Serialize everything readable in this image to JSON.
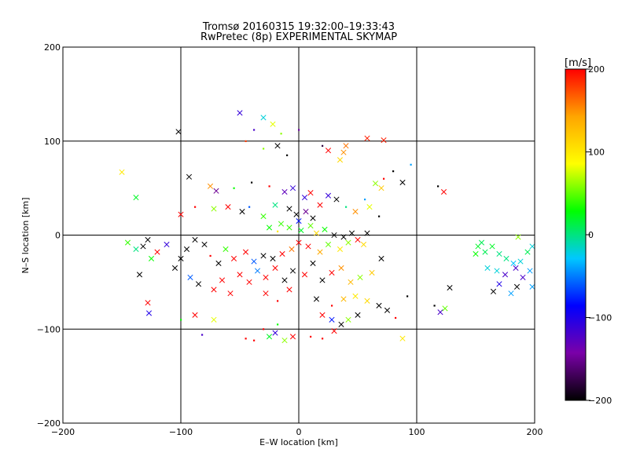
{
  "chart_data": {
    "type": "scatter",
    "title": "Tromsø 20160315 19:32:00–19:33:43",
    "subtitle": "RwPretec (8p) EXPERIMENTAL SKYMAP",
    "xlabel": "E–W location [km]",
    "ylabel": "N–S location [km]",
    "xlim": [
      -200,
      200
    ],
    "ylim": [
      -200,
      200
    ],
    "xticks": [
      -200,
      -100,
      0,
      100,
      200
    ],
    "yticks": [
      -200,
      -100,
      0,
      100,
      200
    ],
    "grid": true,
    "colorbar": {
      "label": "[m/s]",
      "min": -200,
      "max": 200,
      "ticks": [
        200,
        100,
        0,
        -100,
        -200
      ],
      "colormap": [
        "#000000",
        "#7a00a8",
        "#0000ff",
        "#00c8ff",
        "#00ff00",
        "#ffff00",
        "#ffa500",
        "#ff0000"
      ]
    },
    "markers": {
      "small": "dot",
      "large": "x"
    },
    "points": [
      {
        "x": -50,
        "y": 130,
        "v": -110,
        "m": "x"
      },
      {
        "x": -30,
        "y": 125,
        "v": -20,
        "m": "x"
      },
      {
        "x": -22,
        "y": 118,
        "v": 80,
        "m": "x"
      },
      {
        "x": -102,
        "y": 110,
        "v": -200,
        "m": "x"
      },
      {
        "x": -38,
        "y": 112,
        "v": -120,
        "m": "dot"
      },
      {
        "x": -15,
        "y": 108,
        "v": 60,
        "m": "dot"
      },
      {
        "x": 0,
        "y": 112,
        "v": -140,
        "m": "dot"
      },
      {
        "x": 20,
        "y": 95,
        "v": -180,
        "m": "dot"
      },
      {
        "x": -18,
        "y": 95,
        "v": -200,
        "m": "x"
      },
      {
        "x": -30,
        "y": 92,
        "v": 60,
        "m": "dot"
      },
      {
        "x": -45,
        "y": 100,
        "v": 180,
        "m": "dot"
      },
      {
        "x": 58,
        "y": 103,
        "v": 190,
        "m": "x"
      },
      {
        "x": 72,
        "y": 101,
        "v": 190,
        "m": "x"
      },
      {
        "x": 40,
        "y": 95,
        "v": 160,
        "m": "x"
      },
      {
        "x": 38,
        "y": 88,
        "v": 150,
        "m": "x"
      },
      {
        "x": 25,
        "y": 90,
        "v": 200,
        "m": "x"
      },
      {
        "x": 35,
        "y": 80,
        "v": 110,
        "m": "x"
      },
      {
        "x": -10,
        "y": 85,
        "v": -200,
        "m": "dot"
      },
      {
        "x": -150,
        "y": 67,
        "v": 100,
        "m": "x"
      },
      {
        "x": -138,
        "y": 40,
        "v": 20,
        "m": "x"
      },
      {
        "x": -93,
        "y": 62,
        "v": -200,
        "m": "x"
      },
      {
        "x": -75,
        "y": 52,
        "v": 150,
        "m": "x"
      },
      {
        "x": -70,
        "y": 47,
        "v": -150,
        "m": "x"
      },
      {
        "x": -55,
        "y": 50,
        "v": 30,
        "m": "dot"
      },
      {
        "x": -40,
        "y": 56,
        "v": -200,
        "m": "dot"
      },
      {
        "x": -25,
        "y": 52,
        "v": 200,
        "m": "dot"
      },
      {
        "x": 95,
        "y": 75,
        "v": -40,
        "m": "dot"
      },
      {
        "x": 88,
        "y": 56,
        "v": -200,
        "m": "x"
      },
      {
        "x": 80,
        "y": 68,
        "v": -200,
        "m": "dot"
      },
      {
        "x": 72,
        "y": 60,
        "v": 200,
        "m": "dot"
      },
      {
        "x": 65,
        "y": 55,
        "v": 60,
        "m": "x"
      },
      {
        "x": 70,
        "y": 50,
        "v": 120,
        "m": "x"
      },
      {
        "x": 123,
        "y": 46,
        "v": 200,
        "m": "x"
      },
      {
        "x": 118,
        "y": 52,
        "v": -200,
        "m": "dot"
      },
      {
        "x": -100,
        "y": 22,
        "v": 200,
        "m": "x"
      },
      {
        "x": -88,
        "y": 30,
        "v": 200,
        "m": "dot"
      },
      {
        "x": -72,
        "y": 28,
        "v": 60,
        "m": "x"
      },
      {
        "x": -60,
        "y": 30,
        "v": 200,
        "m": "x"
      },
      {
        "x": -48,
        "y": 25,
        "v": -200,
        "m": "x"
      },
      {
        "x": -42,
        "y": 30,
        "v": -60,
        "m": "dot"
      },
      {
        "x": -30,
        "y": 20,
        "v": 40,
        "m": "x"
      },
      {
        "x": -20,
        "y": 32,
        "v": 0,
        "m": "x"
      },
      {
        "x": -12,
        "y": 46,
        "v": -130,
        "m": "x"
      },
      {
        "x": -5,
        "y": 50,
        "v": -110,
        "m": "x"
      },
      {
        "x": 5,
        "y": 40,
        "v": -110,
        "m": "x"
      },
      {
        "x": 10,
        "y": 45,
        "v": 200,
        "m": "x"
      },
      {
        "x": 18,
        "y": 32,
        "v": 200,
        "m": "x"
      },
      {
        "x": 25,
        "y": 42,
        "v": -110,
        "m": "x"
      },
      {
        "x": 32,
        "y": 38,
        "v": -200,
        "m": "x"
      },
      {
        "x": 40,
        "y": 30,
        "v": 0,
        "m": "dot"
      },
      {
        "x": 48,
        "y": 25,
        "v": 150,
        "m": "x"
      },
      {
        "x": 56,
        "y": 38,
        "v": -40,
        "m": "dot"
      },
      {
        "x": 60,
        "y": 30,
        "v": 80,
        "m": "x"
      },
      {
        "x": 68,
        "y": 20,
        "v": -200,
        "m": "dot"
      },
      {
        "x": -8,
        "y": 28,
        "v": -200,
        "m": "x"
      },
      {
        "x": -2,
        "y": 22,
        "v": -200,
        "m": "x"
      },
      {
        "x": 6,
        "y": 25,
        "v": -150,
        "m": "x"
      },
      {
        "x": 12,
        "y": 18,
        "v": -200,
        "m": "x"
      },
      {
        "x": 0,
        "y": 15,
        "v": -80,
        "m": "x"
      },
      {
        "x": -15,
        "y": 12,
        "v": 40,
        "m": "x"
      },
      {
        "x": -25,
        "y": 8,
        "v": 30,
        "m": "x"
      },
      {
        "x": -18,
        "y": 4,
        "v": 100,
        "m": "dot"
      },
      {
        "x": -8,
        "y": 8,
        "v": 40,
        "m": "x"
      },
      {
        "x": 2,
        "y": 5,
        "v": 20,
        "m": "x"
      },
      {
        "x": 10,
        "y": 10,
        "v": 50,
        "m": "x"
      },
      {
        "x": 15,
        "y": 2,
        "v": 110,
        "m": "x"
      },
      {
        "x": 22,
        "y": 6,
        "v": 30,
        "m": "x"
      },
      {
        "x": 30,
        "y": 0,
        "v": -200,
        "m": "x"
      },
      {
        "x": 38,
        "y": -2,
        "v": -200,
        "m": "x"
      },
      {
        "x": 45,
        "y": 2,
        "v": -200,
        "m": "x"
      },
      {
        "x": 50,
        "y": -5,
        "v": 200,
        "m": "x"
      },
      {
        "x": 58,
        "y": 2,
        "v": -200,
        "m": "x"
      },
      {
        "x": 55,
        "y": -10,
        "v": 110,
        "m": "x"
      },
      {
        "x": 42,
        "y": -8,
        "v": 60,
        "m": "x"
      },
      {
        "x": 35,
        "y": -15,
        "v": 100,
        "m": "x"
      },
      {
        "x": 25,
        "y": -10,
        "v": 50,
        "m": "x"
      },
      {
        "x": 18,
        "y": -18,
        "v": 140,
        "m": "x"
      },
      {
        "x": 8,
        "y": -12,
        "v": 200,
        "m": "x"
      },
      {
        "x": 0,
        "y": -8,
        "v": 200,
        "m": "x"
      },
      {
        "x": -6,
        "y": -15,
        "v": 160,
        "m": "x"
      },
      {
        "x": -14,
        "y": -20,
        "v": 200,
        "m": "x"
      },
      {
        "x": -22,
        "y": -25,
        "v": -200,
        "m": "x"
      },
      {
        "x": -30,
        "y": -22,
        "v": -200,
        "m": "x"
      },
      {
        "x": -38,
        "y": -28,
        "v": -60,
        "m": "x"
      },
      {
        "x": -45,
        "y": -18,
        "v": 200,
        "m": "x"
      },
      {
        "x": -55,
        "y": -25,
        "v": 200,
        "m": "x"
      },
      {
        "x": -62,
        "y": -15,
        "v": 40,
        "m": "x"
      },
      {
        "x": -68,
        "y": -30,
        "v": -200,
        "m": "x"
      },
      {
        "x": -75,
        "y": -22,
        "v": 200,
        "m": "dot"
      },
      {
        "x": -80,
        "y": -10,
        "v": -200,
        "m": "x"
      },
      {
        "x": -88,
        "y": -5,
        "v": -200,
        "m": "x"
      },
      {
        "x": -95,
        "y": -15,
        "v": -200,
        "m": "x"
      },
      {
        "x": -100,
        "y": -25,
        "v": -200,
        "m": "x"
      },
      {
        "x": -105,
        "y": -35,
        "v": -200,
        "m": "x"
      },
      {
        "x": -112,
        "y": -10,
        "v": -110,
        "m": "x"
      },
      {
        "x": -120,
        "y": -18,
        "v": 200,
        "m": "x"
      },
      {
        "x": -125,
        "y": -25,
        "v": 30,
        "m": "x"
      },
      {
        "x": -132,
        "y": -12,
        "v": -200,
        "m": "x"
      },
      {
        "x": -138,
        "y": -15,
        "v": 0,
        "m": "x"
      },
      {
        "x": -145,
        "y": -8,
        "v": 40,
        "m": "x"
      },
      {
        "x": -128,
        "y": -5,
        "v": -200,
        "m": "x"
      },
      {
        "x": -135,
        "y": -42,
        "v": -200,
        "m": "x"
      },
      {
        "x": -92,
        "y": -45,
        "v": -60,
        "m": "x"
      },
      {
        "x": -85,
        "y": -52,
        "v": -200,
        "m": "x"
      },
      {
        "x": -72,
        "y": -58,
        "v": 200,
        "m": "x"
      },
      {
        "x": -65,
        "y": -48,
        "v": 200,
        "m": "x"
      },
      {
        "x": -58,
        "y": -62,
        "v": 200,
        "m": "x"
      },
      {
        "x": -50,
        "y": -42,
        "v": 200,
        "m": "x"
      },
      {
        "x": -42,
        "y": -50,
        "v": 200,
        "m": "x"
      },
      {
        "x": -35,
        "y": -38,
        "v": -50,
        "m": "x"
      },
      {
        "x": -28,
        "y": -45,
        "v": 200,
        "m": "x"
      },
      {
        "x": -20,
        "y": -35,
        "v": 200,
        "m": "x"
      },
      {
        "x": -12,
        "y": -48,
        "v": -200,
        "m": "x"
      },
      {
        "x": -5,
        "y": -38,
        "v": -200,
        "m": "x"
      },
      {
        "x": 5,
        "y": -42,
        "v": 200,
        "m": "x"
      },
      {
        "x": 12,
        "y": -30,
        "v": -200,
        "m": "x"
      },
      {
        "x": 20,
        "y": -48,
        "v": -200,
        "m": "x"
      },
      {
        "x": 28,
        "y": -40,
        "v": 200,
        "m": "x"
      },
      {
        "x": 36,
        "y": -35,
        "v": 150,
        "m": "x"
      },
      {
        "x": 44,
        "y": -50,
        "v": 130,
        "m": "x"
      },
      {
        "x": 52,
        "y": -45,
        "v": 60,
        "m": "x"
      },
      {
        "x": 62,
        "y": -40,
        "v": 120,
        "m": "x"
      },
      {
        "x": 70,
        "y": -25,
        "v": -200,
        "m": "x"
      },
      {
        "x": -28,
        "y": -62,
        "v": 200,
        "m": "x"
      },
      {
        "x": -18,
        "y": -70,
        "v": 200,
        "m": "dot"
      },
      {
        "x": -8,
        "y": -58,
        "v": 200,
        "m": "x"
      },
      {
        "x": 15,
        "y": -68,
        "v": -200,
        "m": "x"
      },
      {
        "x": 28,
        "y": -75,
        "v": 200,
        "m": "dot"
      },
      {
        "x": 38,
        "y": -68,
        "v": 130,
        "m": "x"
      },
      {
        "x": 48,
        "y": -65,
        "v": 100,
        "m": "x"
      },
      {
        "x": 58,
        "y": -70,
        "v": 110,
        "m": "x"
      },
      {
        "x": 68,
        "y": -75,
        "v": -200,
        "m": "x"
      },
      {
        "x": 50,
        "y": -85,
        "v": -200,
        "m": "x"
      },
      {
        "x": 42,
        "y": -90,
        "v": 60,
        "m": "x"
      },
      {
        "x": 36,
        "y": -95,
        "v": -200,
        "m": "x"
      },
      {
        "x": 28,
        "y": -90,
        "v": -80,
        "m": "x"
      },
      {
        "x": 20,
        "y": -85,
        "v": 200,
        "m": "x"
      },
      {
        "x": 75,
        "y": -80,
        "v": -200,
        "m": "x"
      },
      {
        "x": 82,
        "y": -88,
        "v": 200,
        "m": "dot"
      },
      {
        "x": 92,
        "y": -65,
        "v": -200,
        "m": "dot"
      },
      {
        "x": -128,
        "y": -72,
        "v": 200,
        "m": "x"
      },
      {
        "x": -127,
        "y": -83,
        "v": -100,
        "m": "x"
      },
      {
        "x": -88,
        "y": -85,
        "v": 200,
        "m": "x"
      },
      {
        "x": -72,
        "y": -90,
        "v": 80,
        "m": "x"
      },
      {
        "x": -100,
        "y": -90,
        "v": 30,
        "m": "dot"
      },
      {
        "x": -30,
        "y": -100,
        "v": 200,
        "m": "dot"
      },
      {
        "x": -25,
        "y": -108,
        "v": 20,
        "m": "x"
      },
      {
        "x": -20,
        "y": -104,
        "v": -110,
        "m": "x"
      },
      {
        "x": -12,
        "y": -112,
        "v": 60,
        "m": "x"
      },
      {
        "x": -5,
        "y": -108,
        "v": 200,
        "m": "x"
      },
      {
        "x": -38,
        "y": -112,
        "v": 200,
        "m": "dot"
      },
      {
        "x": -45,
        "y": -110,
        "v": 200,
        "m": "dot"
      },
      {
        "x": -18,
        "y": -95,
        "v": 30,
        "m": "dot"
      },
      {
        "x": 10,
        "y": -108,
        "v": 200,
        "m": "dot"
      },
      {
        "x": 20,
        "y": -110,
        "v": 200,
        "m": "dot"
      },
      {
        "x": 30,
        "y": -102,
        "v": 200,
        "m": "x"
      },
      {
        "x": 88,
        "y": -110,
        "v": 100,
        "m": "x"
      },
      {
        "x": -82,
        "y": -106,
        "v": -120,
        "m": "dot"
      },
      {
        "x": 115,
        "y": -75,
        "v": -200,
        "m": "dot"
      },
      {
        "x": 120,
        "y": -82,
        "v": -120,
        "m": "x"
      },
      {
        "x": 124,
        "y": -78,
        "v": 50,
        "m": "x"
      },
      {
        "x": 128,
        "y": -56,
        "v": -200,
        "m": "x"
      },
      {
        "x": 152,
        "y": -12,
        "v": 20,
        "m": "x"
      },
      {
        "x": 158,
        "y": -18,
        "v": 10,
        "m": "x"
      },
      {
        "x": 164,
        "y": -12,
        "v": 20,
        "m": "x"
      },
      {
        "x": 170,
        "y": -20,
        "v": 0,
        "m": "x"
      },
      {
        "x": 176,
        "y": -25,
        "v": 0,
        "m": "x"
      },
      {
        "x": 182,
        "y": -30,
        "v": -30,
        "m": "x"
      },
      {
        "x": 188,
        "y": -28,
        "v": -20,
        "m": "x"
      },
      {
        "x": 194,
        "y": -18,
        "v": 10,
        "m": "x"
      },
      {
        "x": 198,
        "y": -12,
        "v": -20,
        "m": "x"
      },
      {
        "x": 160,
        "y": -35,
        "v": -20,
        "m": "x"
      },
      {
        "x": 168,
        "y": -38,
        "v": -20,
        "m": "x"
      },
      {
        "x": 175,
        "y": -42,
        "v": -120,
        "m": "x"
      },
      {
        "x": 184,
        "y": -35,
        "v": -120,
        "m": "x"
      },
      {
        "x": 190,
        "y": -45,
        "v": -120,
        "m": "x"
      },
      {
        "x": 196,
        "y": -38,
        "v": -40,
        "m": "x"
      },
      {
        "x": 185,
        "y": -55,
        "v": -200,
        "m": "x"
      },
      {
        "x": 170,
        "y": -52,
        "v": -100,
        "m": "x"
      },
      {
        "x": 165,
        "y": -60,
        "v": -200,
        "m": "x"
      },
      {
        "x": 180,
        "y": -62,
        "v": -40,
        "m": "x"
      },
      {
        "x": 198,
        "y": -55,
        "v": -40,
        "m": "x"
      },
      {
        "x": 186,
        "y": -2,
        "v": 60,
        "m": "x"
      },
      {
        "x": 150,
        "y": -20,
        "v": 30,
        "m": "x"
      },
      {
        "x": 155,
        "y": -8,
        "v": 10,
        "m": "x"
      }
    ]
  }
}
